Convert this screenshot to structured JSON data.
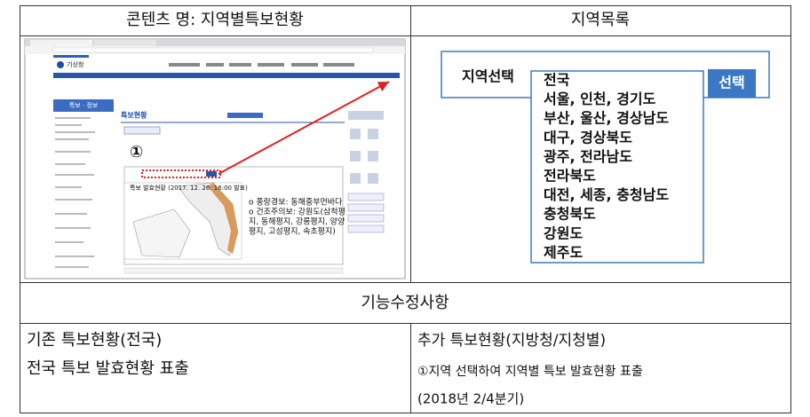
{
  "table": {
    "header": [
      "콘텐츠 명: 지역별특보현황",
      "지역목록"
    ],
    "section": "기능수정사항",
    "before": {
      "title": "기존 특보현황(전국)",
      "desc": "전국 특보 발효현황 표출"
    },
    "after": {
      "title": "추가 특보현황(지방청/지청별)",
      "desc": "①지역 선택하여 지역별 특보 발효현황 표출",
      "period": "(2018년 2/4분기)"
    }
  },
  "region_selector": {
    "label": "지역선택",
    "button": "선택",
    "options": [
      "전국",
      "서울, 인천, 경기도",
      "부산, 울산, 경상남도",
      "대구, 경상북도",
      "광주, 전라남도",
      "전라북도",
      "대전, 세종, 충청남도",
      "충청북도",
      "강원도",
      "제주도"
    ]
  },
  "screenshot": {
    "marker": "①",
    "site": "기상청",
    "section": "특보 · 정보",
    "page": "특보현황",
    "map_title": "특보 발효현황 (2017. 12. 26. 16:00 발표)",
    "notice": [
      "o 풍랑경보: 동해중부먼바다",
      "o 건조주의보: 강원도(삼척평",
      "지, 동해평지, 강릉평지, 양양",
      "평지, 고성평지, 속초평지)"
    ]
  }
}
